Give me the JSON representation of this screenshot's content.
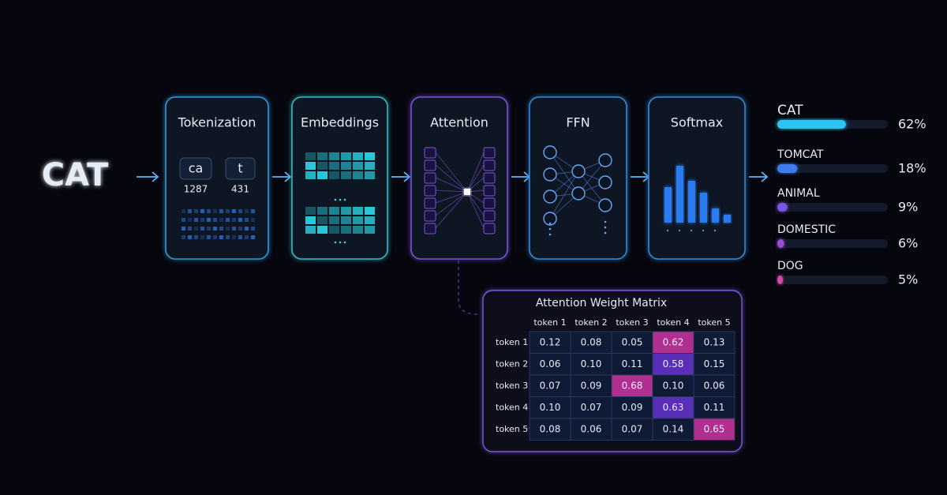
{
  "input": "CAT",
  "stages": [
    {
      "title": "Tokenization",
      "tokens": [
        "ca",
        "t"
      ],
      "ids": [
        "1287",
        "431"
      ]
    },
    {
      "title": "Embeddings"
    },
    {
      "title": "Attention"
    },
    {
      "title": "FFN"
    },
    {
      "title": "Softmax"
    }
  ],
  "predictions": {
    "labels": [
      "CAT",
      "TOMCAT",
      "ANIMAL",
      "DOMESTIC",
      "DOG"
    ],
    "values": [
      62,
      18,
      9,
      6,
      5
    ],
    "value_labels": [
      "62%",
      "18%",
      "9%",
      "6%",
      "5%"
    ],
    "colors": [
      "#2fc3f0",
      "#3f7cf0",
      "#7a55e8",
      "#9a4fd8",
      "#d84aa8"
    ],
    "xlim": [
      0,
      100
    ]
  },
  "matrix": {
    "title": "Attention Weight Matrix",
    "columns": [
      "token 1",
      "token 2",
      "token 3",
      "token 4",
      "token 5"
    ],
    "rows": [
      {
        "label": "token 1",
        "cells": [
          "0.12",
          "0.08",
          "0.05",
          "0.62",
          "0.13"
        ]
      },
      {
        "label": "token 2",
        "cells": [
          "0.06",
          "0.10",
          "0.11",
          "0.58",
          "0.15"
        ]
      },
      {
        "label": "token 3",
        "cells": [
          "0.07",
          "0.09",
          "0.68",
          "0.10",
          "0.06"
        ]
      },
      {
        "label": "token 4",
        "cells": [
          "0.10",
          "0.07",
          "0.09",
          "0.63",
          "0.11"
        ]
      },
      {
        "label": "token 5",
        "cells": [
          "0.08",
          "0.06",
          "0.07",
          "0.14",
          "0.65"
        ]
      }
    ],
    "highlights": [
      {
        "row": 0,
        "col": 3,
        "color": "#b02f90"
      },
      {
        "row": 1,
        "col": 3,
        "color": "#5a2fb8"
      },
      {
        "row": 2,
        "col": 2,
        "color": "#b02f90"
      },
      {
        "row": 3,
        "col": 3,
        "color": "#5a2fb8"
      },
      {
        "row": 4,
        "col": 4,
        "color": "#b02f90"
      }
    ]
  }
}
